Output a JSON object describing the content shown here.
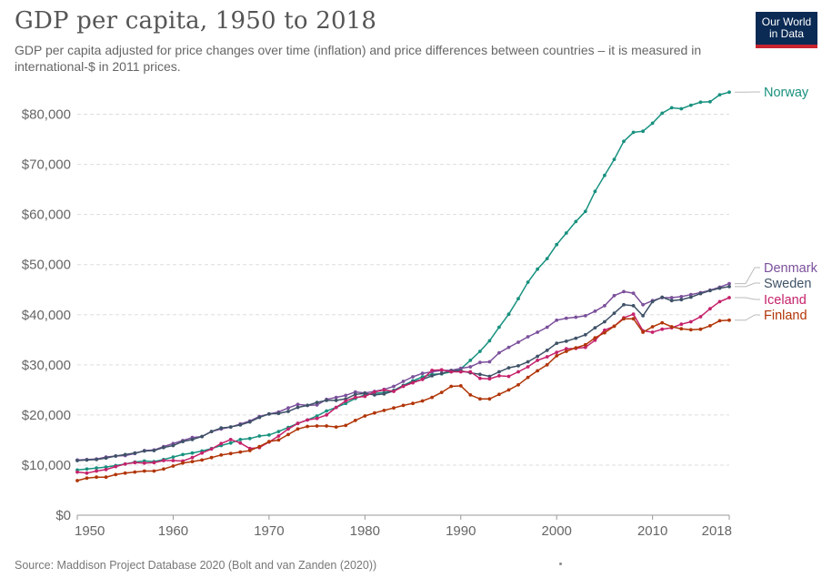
{
  "header": {
    "title": "GDP per capita, 1950 to 2018",
    "subtitle": "GDP per capita adjusted for price changes over time (inflation) and price differences between countries – it is measured in international-$ in 2011 prices.",
    "logo_line1": "Our World",
    "logo_line2": "in Data"
  },
  "footer": {
    "source": "Source: Maddison Project Database 2020 (Bolt and van Zanden (2020))"
  },
  "chart_data": {
    "type": "line",
    "title": "GDP per capita, 1950 to 2018",
    "xlabel": "",
    "ylabel": "",
    "xlim": [
      1950,
      2018
    ],
    "ylim": [
      0,
      85000
    ],
    "grid": "horizontal-dashed",
    "legend": "right-end-labels",
    "x_ticks": [
      1950,
      1960,
      1970,
      1980,
      1990,
      2000,
      2010,
      2018
    ],
    "x_tick_labels": [
      "1950",
      "1960",
      "1970",
      "1980",
      "1990",
      "2000",
      "2010",
      "2018"
    ],
    "y_ticks": [
      0,
      10000,
      20000,
      30000,
      40000,
      50000,
      60000,
      70000,
      80000
    ],
    "y_tick_labels": [
      "$0",
      "$10,000",
      "$20,000",
      "$30,000",
      "$40,000",
      "$50,000",
      "$60,000",
      "$70,000",
      "$80,000"
    ],
    "x": [
      1950,
      1951,
      1952,
      1953,
      1954,
      1955,
      1956,
      1957,
      1958,
      1959,
      1960,
      1961,
      1962,
      1963,
      1964,
      1965,
      1966,
      1967,
      1968,
      1969,
      1970,
      1971,
      1972,
      1973,
      1974,
      1975,
      1976,
      1977,
      1978,
      1979,
      1980,
      1981,
      1982,
      1983,
      1984,
      1985,
      1986,
      1987,
      1988,
      1989,
      1990,
      1991,
      1992,
      1993,
      1994,
      1995,
      1996,
      1997,
      1998,
      1999,
      2000,
      2001,
      2002,
      2003,
      2004,
      2005,
      2006,
      2007,
      2008,
      2009,
      2010,
      2011,
      2012,
      2013,
      2014,
      2015,
      2016,
      2017,
      2018
    ],
    "series": [
      {
        "name": "Norway",
        "color": "#18917f",
        "values": [
          9000,
          9200,
          9400,
          9600,
          9900,
          10200,
          10600,
          10800,
          10700,
          11100,
          11600,
          12100,
          12400,
          12800,
          13300,
          13900,
          14400,
          15100,
          15300,
          15800,
          16000,
          16700,
          17500,
          18300,
          19000,
          19800,
          20800,
          21500,
          22300,
          23300,
          24000,
          24300,
          24500,
          24900,
          25900,
          26800,
          27600,
          28100,
          28200,
          28600,
          29200,
          30900,
          32700,
          34800,
          37500,
          40100,
          43200,
          46500,
          49100,
          51200,
          54000,
          56300,
          58600,
          60600,
          64600,
          67800,
          71000,
          74600,
          76400,
          76600,
          78200,
          80200,
          81300,
          81100,
          81800,
          82400,
          82500,
          83900,
          84400
        ]
      },
      {
        "name": "Denmark",
        "color": "#7b509b",
        "values": [
          11000,
          11100,
          11200,
          11600,
          11800,
          11900,
          12300,
          12900,
          13000,
          13700,
          14300,
          14900,
          15500,
          15700,
          16700,
          17200,
          17600,
          18200,
          18800,
          19700,
          20200,
          20600,
          21400,
          22100,
          21900,
          22000,
          23100,
          23500,
          23900,
          24600,
          24400,
          24700,
          25100,
          25700,
          26700,
          27600,
          28300,
          28600,
          28900,
          28900,
          29300,
          29600,
          30500,
          30600,
          32400,
          33500,
          34500,
          35600,
          36500,
          37500,
          38900,
          39300,
          39500,
          39800,
          40700,
          41800,
          43800,
          44600,
          44300,
          42000,
          42800,
          43400,
          43400,
          43600,
          44000,
          44400,
          44900,
          45500,
          46200
        ]
      },
      {
        "name": "Sweden",
        "color": "#3f5268",
        "values": [
          10900,
          11000,
          11100,
          11400,
          11800,
          12100,
          12400,
          12800,
          12900,
          13500,
          13900,
          14700,
          15100,
          15700,
          16700,
          17400,
          17600,
          18000,
          18600,
          19500,
          20200,
          20300,
          20700,
          21500,
          21900,
          22500,
          22900,
          22900,
          23200,
          24100,
          24300,
          24000,
          24200,
          24800,
          25800,
          26600,
          27100,
          27800,
          28300,
          28800,
          28800,
          28400,
          28100,
          27700,
          28600,
          29400,
          29800,
          30600,
          31700,
          32900,
          34300,
          34700,
          35300,
          36000,
          37400,
          38600,
          40300,
          42000,
          41800,
          39800,
          42600,
          43500,
          42800,
          43000,
          43500,
          44200,
          44800,
          45300,
          45600
        ]
      },
      {
        "name": "Iceland",
        "color": "#c5226b",
        "values": [
          8600,
          8400,
          8800,
          9100,
          9700,
          10200,
          10500,
          10400,
          10500,
          10900,
          10900,
          10800,
          11500,
          12400,
          13200,
          14300,
          15100,
          14400,
          13300,
          13500,
          14600,
          15800,
          17200,
          18300,
          19000,
          19300,
          20000,
          21500,
          22800,
          23500,
          23700,
          24600,
          25000,
          24700,
          25700,
          26400,
          27100,
          28900,
          29000,
          28600,
          28600,
          28600,
          27300,
          27200,
          27800,
          27700,
          28600,
          29600,
          30900,
          31600,
          32500,
          33200,
          33300,
          33500,
          34900,
          36900,
          37700,
          39400,
          40100,
          36800,
          36500,
          37100,
          37400,
          38100,
          38600,
          39600,
          41200,
          42600,
          43400
        ]
      },
      {
        "name": "Finland",
        "color": "#b13507",
        "values": [
          6900,
          7400,
          7600,
          7600,
          8100,
          8400,
          8600,
          8800,
          8800,
          9200,
          9800,
          10400,
          10700,
          11000,
          11500,
          12000,
          12300,
          12600,
          12900,
          13700,
          14700,
          15000,
          16100,
          17200,
          17700,
          17800,
          17800,
          17600,
          17900,
          18900,
          19800,
          20400,
          20900,
          21400,
          21900,
          22300,
          22800,
          23500,
          24500,
          25700,
          25800,
          24000,
          23200,
          23200,
          24100,
          25000,
          26000,
          27500,
          28800,
          30000,
          31800,
          32700,
          33400,
          34000,
          35400,
          36400,
          37700,
          39200,
          39200,
          36500,
          37600,
          38400,
          37600,
          37200,
          37000,
          37100,
          37800,
          38800,
          38900
        ]
      }
    ]
  }
}
